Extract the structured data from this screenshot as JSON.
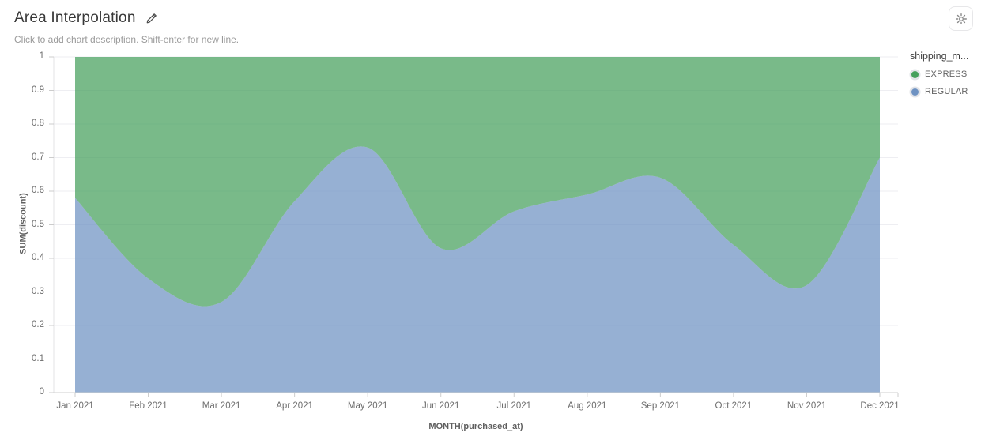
{
  "header": {
    "title": "Area Interpolation",
    "description_placeholder": "Click to add chart description. Shift-enter for new line."
  },
  "icons": {
    "edit_icon": "pencil",
    "settings_icon": "gear"
  },
  "legend": {
    "title": "shipping_m...",
    "items": [
      {
        "label": "EXPRESS",
        "color": "#45a05c"
      },
      {
        "label": "REGULAR",
        "color": "#6e92c2"
      }
    ]
  },
  "chart_data": {
    "type": "area",
    "stacked": true,
    "normalized": true,
    "interpolation": "smooth",
    "title": "Area Interpolation",
    "xlabel": "MONTH(purchased_at)",
    "ylabel": "SUM(discount)",
    "x": [
      "Jan 2021",
      "Feb 2021",
      "Mar 2021",
      "Apr 2021",
      "May 2021",
      "Jun 2021",
      "Jul 2021",
      "Aug 2021",
      "Sep 2021",
      "Oct 2021",
      "Nov 2021",
      "Dec 2021"
    ],
    "series": [
      {
        "name": "REGULAR",
        "color": "#6e92c2",
        "values": [
          0.58,
          0.34,
          0.27,
          0.57,
          0.73,
          0.43,
          0.54,
          0.59,
          0.64,
          0.44,
          0.32,
          0.7
        ]
      },
      {
        "name": "EXPRESS",
        "color": "#45a05c",
        "values": [
          0.42,
          0.66,
          0.73,
          0.43,
          0.27,
          0.57,
          0.46,
          0.41,
          0.36,
          0.56,
          0.68,
          0.3
        ]
      }
    ],
    "ylim": [
      0,
      1
    ],
    "yticks": [
      0,
      0.1,
      0.2,
      0.3,
      0.4,
      0.5,
      0.6,
      0.7,
      0.8,
      0.9,
      1
    ],
    "grid": true,
    "legend_position": "right",
    "fill_opacity": 0.72
  }
}
